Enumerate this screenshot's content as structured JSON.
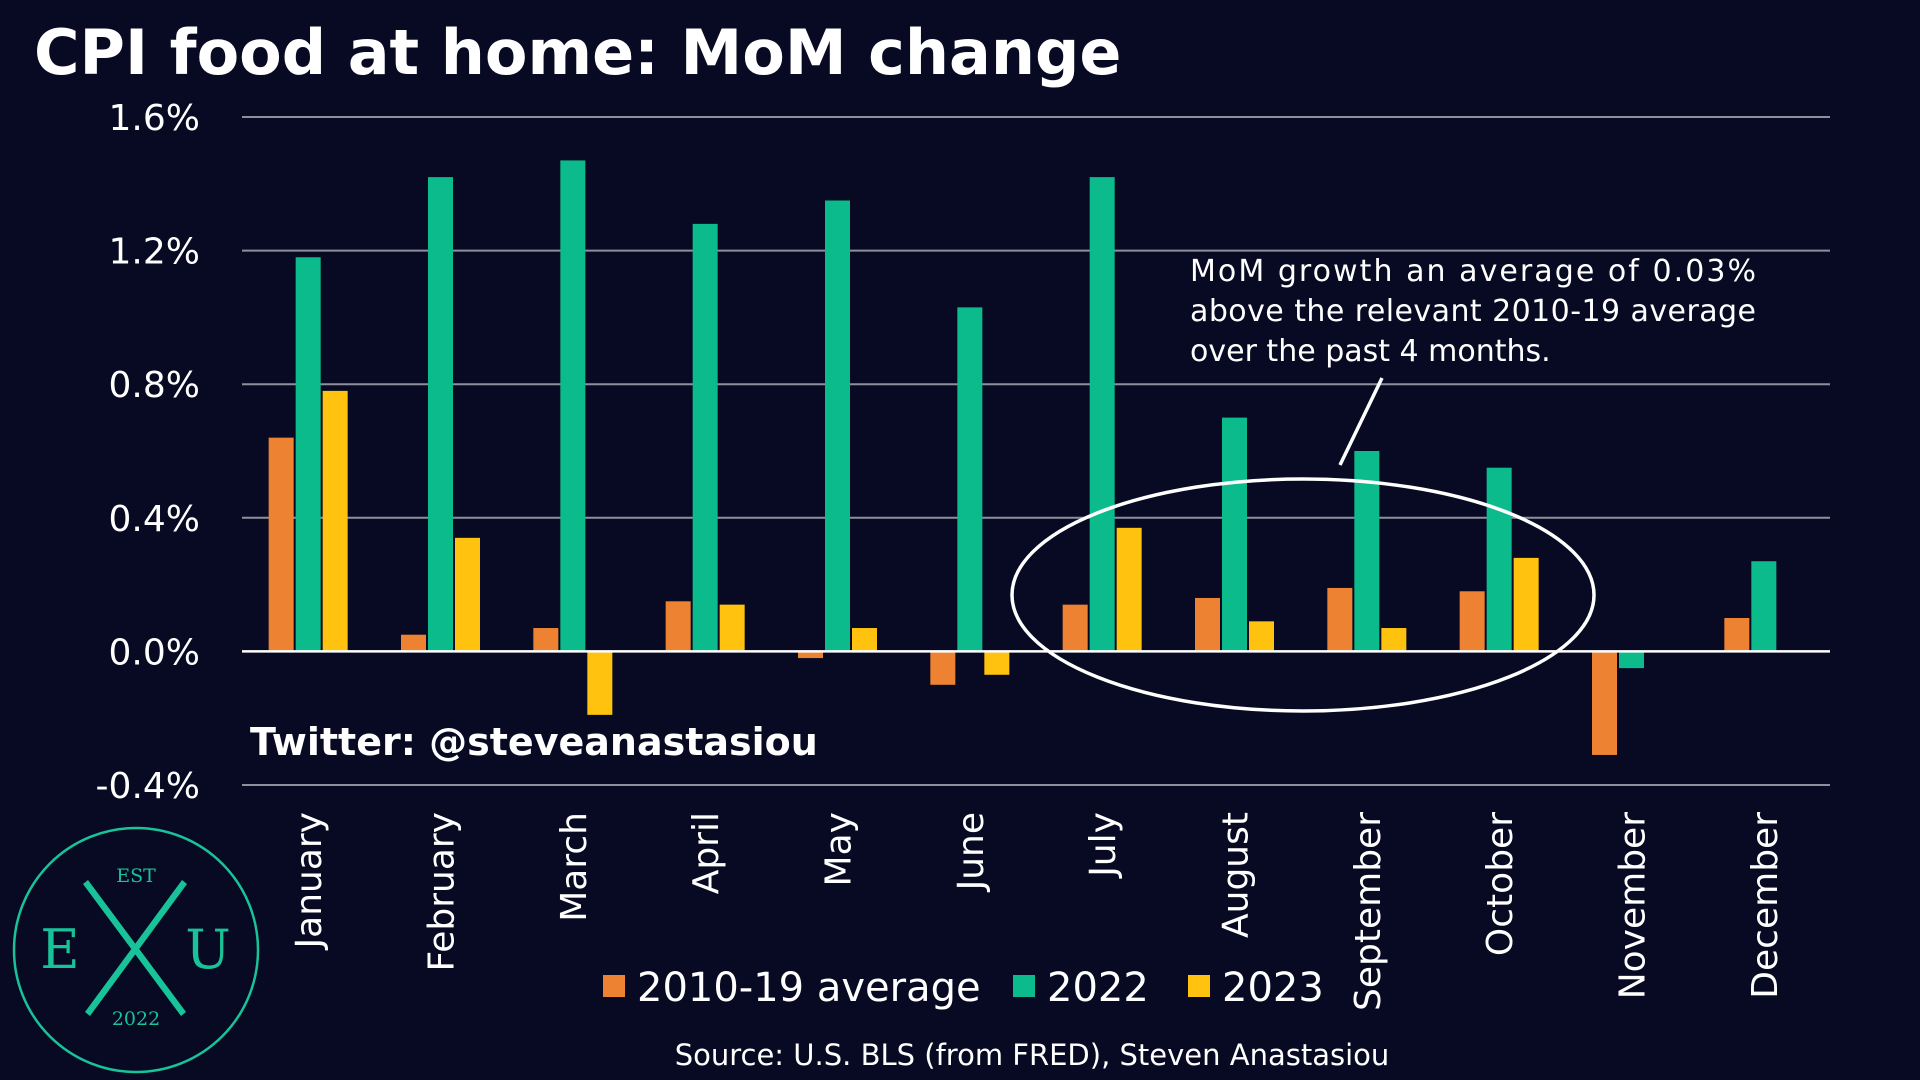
{
  "chart_data": {
    "type": "bar",
    "title": "CPI food at home: MoM change",
    "categories": [
      "January",
      "February",
      "March",
      "April",
      "May",
      "June",
      "July",
      "August",
      "September",
      "October",
      "November",
      "December"
    ],
    "series": [
      {
        "name": "2010-19 average",
        "color": "#ed8232",
        "values": [
          0.64,
          0.05,
          0.07,
          0.15,
          -0.02,
          -0.1,
          0.14,
          0.16,
          0.19,
          0.18,
          -0.31,
          0.1
        ]
      },
      {
        "name": "2022",
        "color": "#0cbb8c",
        "values": [
          1.18,
          1.42,
          1.47,
          1.28,
          1.35,
          1.03,
          1.42,
          0.7,
          0.6,
          0.55,
          -0.05,
          0.27
        ]
      },
      {
        "name": "2023",
        "color": "#ffc20e",
        "values": [
          0.78,
          0.34,
          -0.19,
          0.14,
          0.07,
          -0.07,
          0.37,
          0.09,
          0.07,
          0.28,
          null,
          null
        ]
      }
    ],
    "ylim": [
      -0.4,
      1.6
    ],
    "yticks": [
      -0.4,
      0.0,
      0.4,
      0.8,
      1.2,
      1.6
    ],
    "ytick_labels": [
      "-0.4%",
      "0.0%",
      "0.4%",
      "0.8%",
      "1.2%",
      "1.6%"
    ],
    "grid": true,
    "legend_position": "bottom",
    "annotation": {
      "lines": [
        "MoM growth an average of 0.03%",
        "above the relevant 2010-19 average",
        "over the past 4 months."
      ],
      "highlight_categories": [
        "July",
        "August",
        "September",
        "October"
      ]
    }
  },
  "credit": "Twitter: @steveanastasiou",
  "source": "Source: U.S. BLS (from FRED), Steven Anastasiou",
  "logo": {
    "top": "EST",
    "left": "E",
    "right": "U",
    "bottom": "2022",
    "color": "#19c39a"
  }
}
